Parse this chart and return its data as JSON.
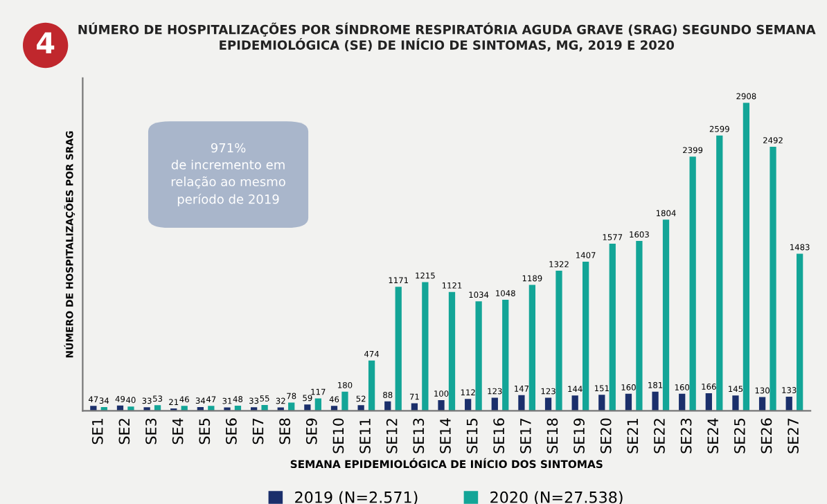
{
  "chart_data": {
    "type": "bar",
    "title": "NÚMERO DE HOSPITALIZAÇÕES POR SÍNDROME RESPIRATÓRIA AGUDA GRAVE (SRAG) SEGUNDO SEMANA EPIDEMIOLÓGICA (SE) DE INÍCIO DE SINTOMAS, MG, 2019 E 2020",
    "xlabel": "SEMANA EPIDEMIOLÓGICA DE INÍCIO DOS SINTOMAS",
    "ylabel": "NÚMERO DE HOSPITALIZAÇÕES POR SRAG",
    "categories": [
      "SE1",
      "SE2",
      "SE3",
      "SE4",
      "SE5",
      "SE6",
      "SE7",
      "SE8",
      "SE9",
      "SE10",
      "SE11",
      "SE12",
      "SE13",
      "SE14",
      "SE15",
      "SE16",
      "SE17",
      "SE18",
      "SE19",
      "SE20",
      "SE21",
      "SE22",
      "SE23",
      "SE24",
      "SE25",
      "SE26",
      "SE27"
    ],
    "series": [
      {
        "name": "2019 (N=2.571)",
        "color": "#1b2f6b",
        "values": [
          47,
          49,
          33,
          21,
          34,
          31,
          33,
          32,
          59,
          46,
          52,
          88,
          71,
          100,
          112,
          123,
          147,
          123,
          144,
          151,
          160,
          181,
          160,
          166,
          145,
          130,
          133
        ]
      },
      {
        "name": "2020 (N=27.538)",
        "color": "#13a597",
        "values": [
          34,
          40,
          53,
          46,
          47,
          48,
          55,
          78,
          117,
          180,
          474,
          1171,
          1215,
          1121,
          1034,
          1048,
          1189,
          1322,
          1407,
          1577,
          1603,
          1804,
          2399,
          2599,
          2908,
          2492,
          1483
        ]
      }
    ],
    "data_labels": true,
    "legend": "bottom",
    "grid": false,
    "annotations": [
      "4",
      "971%\nde incremento em\nrelação ao mesmo\nperíodo de 2019"
    ]
  }
}
